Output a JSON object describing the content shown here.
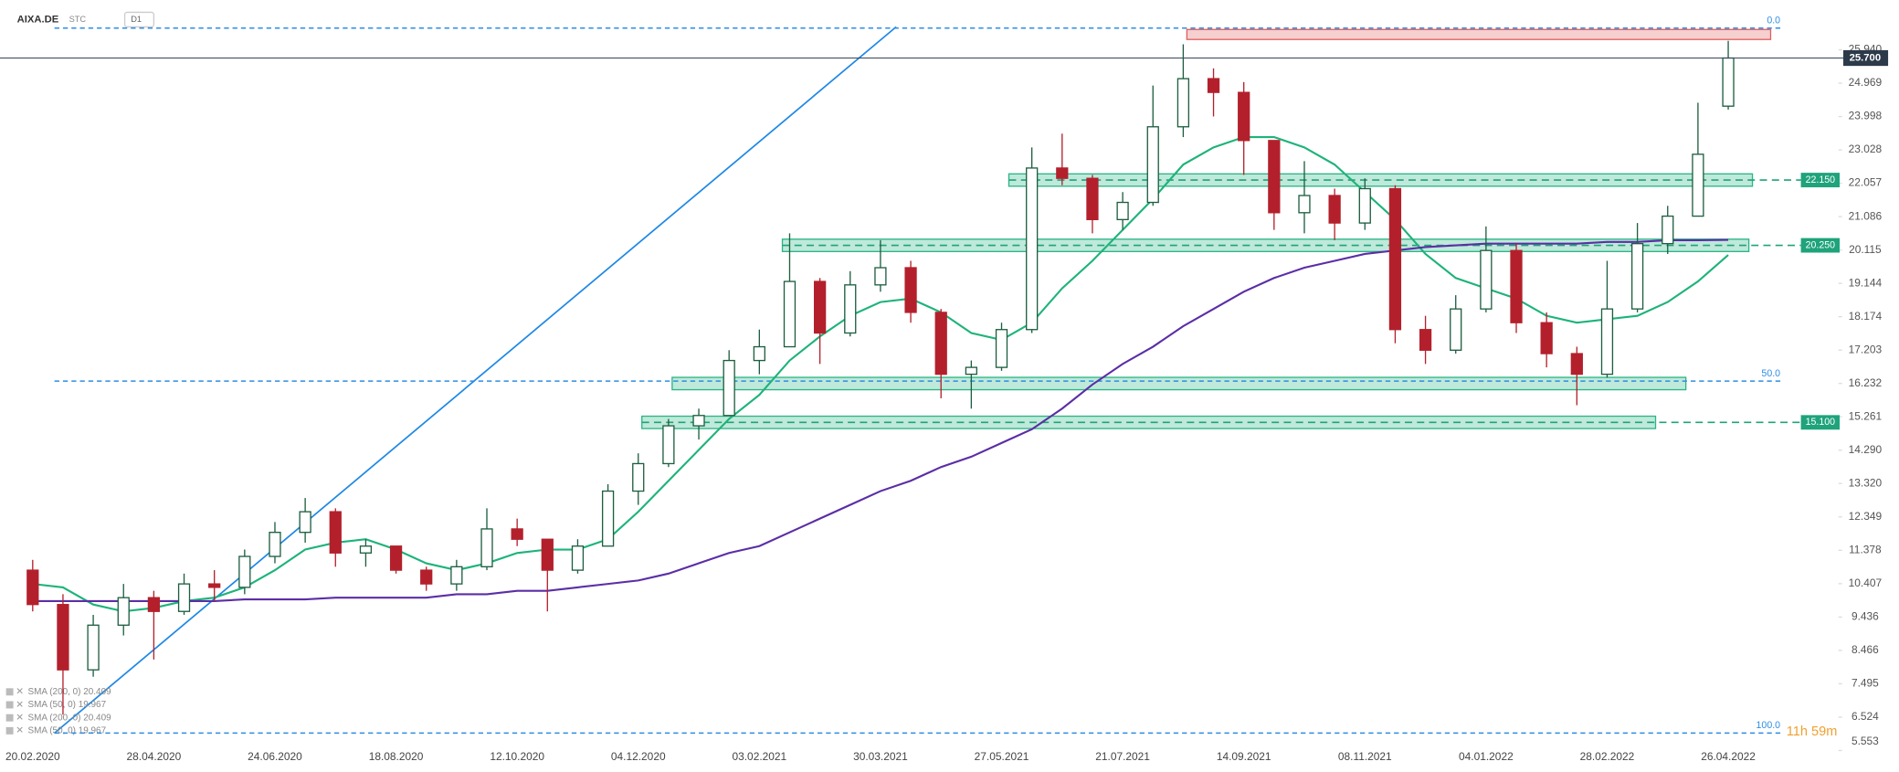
{
  "header": {
    "symbol": "AIXA.DE",
    "mode": "STC",
    "interval": "D1"
  },
  "timer": "11h 59m",
  "legend": [
    "SMA (200, 0) 20.409",
    "SMA (50, 0) 19.967",
    "SMA (200, 0) 20.409",
    "SMA (50, 0) 19.967"
  ],
  "chart_data": {
    "type": "candlestick",
    "categories": [
      "20.02.2020",
      null,
      null,
      null,
      "28.04.2020",
      null,
      null,
      null,
      "24.06.2020",
      null,
      null,
      null,
      "18.08.2020",
      null,
      null,
      null,
      "12.10.2020",
      null,
      null,
      null,
      "04.12.2020",
      null,
      null,
      null,
      "03.02.2021",
      null,
      null,
      null,
      "30.03.2021",
      null,
      null,
      null,
      "27.05.2021",
      null,
      null,
      null,
      "21.07.2021",
      null,
      null,
      null,
      "14.09.2021",
      null,
      null,
      null,
      "08.11.2021",
      null,
      null,
      null,
      "04.01.2022",
      null,
      null,
      null,
      "28.02.2022",
      null,
      null,
      null,
      "26.04.2022"
    ],
    "open": [
      10.8,
      9.8,
      7.9,
      9.2,
      10.0,
      9.6,
      10.4,
      10.3,
      11.2,
      11.9,
      12.5,
      11.3,
      11.5,
      10.8,
      10.4,
      10.9,
      12.0,
      11.7,
      10.8,
      11.5,
      13.1,
      13.9,
      15.0,
      15.3,
      16.9,
      17.3,
      19.2,
      17.7,
      19.1,
      19.6,
      18.3,
      16.5,
      16.7,
      17.8,
      22.5,
      22.2,
      21.0,
      21.5,
      23.7,
      25.1,
      24.7,
      23.3,
      21.2,
      21.7,
      20.9,
      21.9,
      17.8,
      17.2,
      18.4,
      20.1,
      18.0,
      17.1,
      16.5,
      18.4,
      20.3,
      21.1,
      24.3
    ],
    "high": [
      11.1,
      10.1,
      9.5,
      10.4,
      10.2,
      10.7,
      10.8,
      11.4,
      12.2,
      12.9,
      12.6,
      11.7,
      11.5,
      10.9,
      11.1,
      12.6,
      12.3,
      11.7,
      11.7,
      13.3,
      14.2,
      15.2,
      15.5,
      17.2,
      17.8,
      20.6,
      19.3,
      19.5,
      20.4,
      19.8,
      18.4,
      16.9,
      18.0,
      23.1,
      23.5,
      22.3,
      21.8,
      24.9,
      26.1,
      25.4,
      25.0,
      23.3,
      22.7,
      21.9,
      22.2,
      22.0,
      18.2,
      18.8,
      20.8,
      20.3,
      18.3,
      17.3,
      19.8,
      20.9,
      21.4,
      24.4,
      26.2
    ],
    "low": [
      9.6,
      6.6,
      7.7,
      8.9,
      8.2,
      9.5,
      9.9,
      10.1,
      11.0,
      11.6,
      10.9,
      10.9,
      10.7,
      10.2,
      10.2,
      10.8,
      11.5,
      9.6,
      10.7,
      11.5,
      12.7,
      13.8,
      14.6,
      15.3,
      16.5,
      17.3,
      16.8,
      17.6,
      18.9,
      18.0,
      15.8,
      15.5,
      16.6,
      17.7,
      22.0,
      20.6,
      20.7,
      21.4,
      23.4,
      24.0,
      22.3,
      20.7,
      20.6,
      20.4,
      20.7,
      17.4,
      16.8,
      17.1,
      18.3,
      17.7,
      16.7,
      15.6,
      16.4,
      18.3,
      20.0,
      21.1,
      24.2
    ],
    "close": [
      9.8,
      7.9,
      9.2,
      10.0,
      9.6,
      10.4,
      10.3,
      11.2,
      11.9,
      12.5,
      11.3,
      11.5,
      10.8,
      10.4,
      10.9,
      12.0,
      11.7,
      10.8,
      11.5,
      13.1,
      13.9,
      15.0,
      15.3,
      16.9,
      17.3,
      19.2,
      17.7,
      19.1,
      19.6,
      18.3,
      16.5,
      16.7,
      17.8,
      22.5,
      22.2,
      21.0,
      21.5,
      23.7,
      25.1,
      24.7,
      23.3,
      21.2,
      21.7,
      20.9,
      21.9,
      17.8,
      17.2,
      18.4,
      20.1,
      18.0,
      17.1,
      16.5,
      18.4,
      20.3,
      21.1,
      22.9,
      25.7
    ],
    "up_color": "#1d5e40",
    "down_color": "#b3202c",
    "series": [
      {
        "color": "#1db37a",
        "values": [
          10.4,
          10.3,
          9.8,
          9.6,
          9.7,
          9.9,
          10.0,
          10.3,
          10.8,
          11.4,
          11.6,
          11.7,
          11.4,
          11.0,
          10.8,
          11.0,
          11.3,
          11.4,
          11.4,
          11.7,
          12.5,
          13.4,
          14.3,
          15.2,
          15.9,
          16.9,
          17.6,
          18.2,
          18.6,
          18.7,
          18.3,
          17.7,
          17.5,
          18.0,
          19.0,
          19.8,
          20.7,
          21.6,
          22.6,
          23.1,
          23.4,
          23.4,
          23.1,
          22.6,
          21.8,
          21.0,
          20.0,
          19.3,
          19.0,
          18.7,
          18.2,
          18.0,
          18.1,
          18.2,
          18.6,
          19.2,
          19.97
        ]
      },
      {
        "color": "#5b2ea6",
        "values": [
          9.9,
          9.9,
          9.9,
          9.9,
          9.9,
          9.9,
          9.9,
          9.95,
          9.95,
          9.95,
          10.0,
          10.0,
          10.0,
          10.0,
          10.1,
          10.1,
          10.2,
          10.2,
          10.3,
          10.4,
          10.5,
          10.7,
          11.0,
          11.3,
          11.5,
          11.9,
          12.3,
          12.7,
          13.1,
          13.4,
          13.8,
          14.1,
          14.5,
          14.9,
          15.5,
          16.2,
          16.8,
          17.3,
          17.9,
          18.4,
          18.9,
          19.3,
          19.6,
          19.8,
          20.0,
          20.1,
          20.2,
          20.25,
          20.3,
          20.3,
          20.3,
          20.3,
          20.35,
          20.35,
          20.4,
          20.4,
          20.41
        ]
      }
    ],
    "ylim": [
      5.55,
      26.96
    ],
    "yticks": [
      {
        "value": 25.94,
        "label": "25.940"
      },
      24.969,
      23.998,
      23.028,
      22.057,
      21.086,
      20.115,
      19.144,
      18.174,
      17.203,
      16.232,
      15.261,
      {
        "value": 14.29,
        "label": "14.290"
      },
      {
        "value": 13.32,
        "label": "13.320"
      },
      12.349,
      11.378,
      10.407,
      9.436,
      8.466,
      7.495,
      6.524,
      5.553
    ],
    "grid": false,
    "current_price": {
      "value": 25.7,
      "label": "25.700"
    },
    "levels": [
      {
        "value": 22.15,
        "label": "22.150"
      },
      {
        "value": 20.25,
        "label": "20.250"
      },
      {
        "value": 15.1,
        "label": "15.100"
      }
    ],
    "fib_levels": [
      {
        "label": "0.0",
        "price": 26.57
      },
      {
        "label": "50.0",
        "price": 16.3
      },
      {
        "label": "100.0",
        "price": 6.06
      }
    ],
    "zones": [
      {
        "low": 26.24,
        "high": 26.53,
        "color": "#e06060"
      },
      {
        "low": 21.97,
        "high": 22.33,
        "color": "#2bb585"
      },
      {
        "low": 20.07,
        "high": 20.43,
        "color": "#2bb585"
      },
      {
        "low": 16.05,
        "high": 16.41,
        "color": "#2bb585"
      },
      {
        "low": 14.92,
        "high": 15.28,
        "color": "#2bb585"
      }
    ]
  }
}
